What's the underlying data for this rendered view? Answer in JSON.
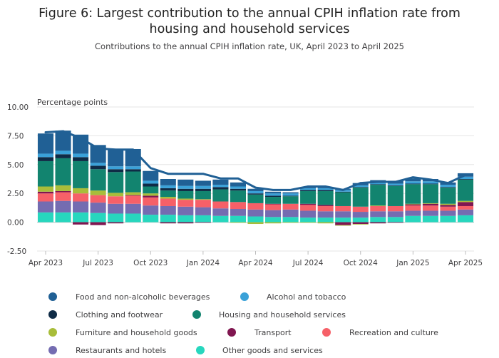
{
  "title_line1": "Figure 6: Largest contribution to the annual CPIH inflation rate from",
  "title_line2": "housing and household services",
  "subtitle": "Contributions to the annual CPIH inflation rate, UK, April 2023 to April 2025",
  "chart_data": {
    "type": "bar",
    "stacked": true,
    "title": "Figure 6: Largest contribution to the annual CPIH inflation rate from housing and household services",
    "subtitle": "Contributions to the annual CPIH inflation rate, UK, April 2023 to April 2025",
    "ylabel": "Percentage points",
    "xlabel": "",
    "ylim": [
      -2.5,
      10
    ],
    "yticks": [
      -2.5,
      0,
      2.5,
      5,
      7.5,
      10
    ],
    "ytick_labels": [
      "-2.50",
      "0.00",
      "2.50",
      "5.00",
      "7.50",
      "10.00"
    ],
    "grid": true,
    "legend_position": "bottom",
    "categories": [
      "Apr 2023",
      "May 2023",
      "Jun 2023",
      "Jul 2023",
      "Aug 2023",
      "Sep 2023",
      "Oct 2023",
      "Nov 2023",
      "Dec 2023",
      "Jan 2024",
      "Feb 2024",
      "Mar 2024",
      "Apr 2024",
      "May 2024",
      "Jun 2024",
      "Jul 2024",
      "Aug 2024",
      "Sep 2024",
      "Oct 2024",
      "Nov 2024",
      "Dec 2024",
      "Jan 2025",
      "Feb 2025",
      "Mar 2025",
      "Apr 2025"
    ],
    "x_tick_labels": [
      "Apr 2023",
      "Jul 2023",
      "Oct 2023",
      "Jan 2024",
      "Apr 2024",
      "Jul 2024",
      "Oct 2024",
      "Jan 2025",
      "Apr 2025"
    ],
    "series": [
      {
        "name": "Other goods and services",
        "color": "#27d7be",
        "values": [
          0.85,
          0.85,
          0.85,
          0.8,
          0.75,
          0.75,
          0.65,
          0.65,
          0.6,
          0.6,
          0.55,
          0.55,
          0.5,
          0.45,
          0.45,
          0.4,
          0.4,
          0.4,
          0.4,
          0.45,
          0.45,
          0.55,
          0.55,
          0.55,
          0.6
        ]
      },
      {
        "name": "Restaurants and hotels",
        "color": "#746cb1",
        "values": [
          0.95,
          1.0,
          0.95,
          0.9,
          0.85,
          0.85,
          0.8,
          0.75,
          0.75,
          0.7,
          0.65,
          0.6,
          0.6,
          0.6,
          0.65,
          0.6,
          0.55,
          0.55,
          0.5,
          0.5,
          0.5,
          0.45,
          0.45,
          0.45,
          0.5
        ]
      },
      {
        "name": "Recreation and culture",
        "color": "#f66068",
        "values": [
          0.7,
          0.75,
          0.7,
          0.65,
          0.65,
          0.7,
          0.7,
          0.65,
          0.6,
          0.65,
          0.6,
          0.6,
          0.55,
          0.5,
          0.5,
          0.5,
          0.45,
          0.45,
          0.45,
          0.45,
          0.45,
          0.45,
          0.45,
          0.35,
          0.3
        ]
      },
      {
        "name": "Transport",
        "color": "#801650",
        "values": [
          0.15,
          0.1,
          -0.2,
          -0.25,
          -0.1,
          0.05,
          0.15,
          -0.1,
          -0.1,
          -0.05,
          0.0,
          0.0,
          0.0,
          0.05,
          0.0,
          0.1,
          0.1,
          -0.25,
          -0.15,
          -0.1,
          -0.05,
          0.1,
          0.15,
          0.15,
          0.35
        ]
      },
      {
        "name": "Furniture and household goods",
        "color": "#a8bd3a",
        "values": [
          0.45,
          0.5,
          0.45,
          0.4,
          0.3,
          0.25,
          0.2,
          0.15,
          0.1,
          0.05,
          0.0,
          -0.05,
          -0.15,
          -0.1,
          -0.05,
          -0.05,
          -0.1,
          -0.05,
          -0.05,
          0.05,
          0.0,
          0.05,
          0.05,
          0.1,
          0.1
        ]
      },
      {
        "name": "Housing and household services",
        "color": "#12846f",
        "values": [
          2.2,
          2.35,
          2.35,
          1.85,
          1.8,
          1.8,
          0.6,
          0.55,
          0.65,
          0.7,
          1.05,
          1.0,
          0.75,
          0.6,
          0.65,
          1.1,
          1.2,
          1.2,
          1.65,
          1.8,
          1.75,
          1.7,
          1.65,
          1.4,
          1.85
        ]
      },
      {
        "name": "Clothing and footwear",
        "color": "#0f2b46",
        "values": [
          0.35,
          0.35,
          0.35,
          0.3,
          0.25,
          0.2,
          0.25,
          0.2,
          0.2,
          0.2,
          0.2,
          0.15,
          0.1,
          0.1,
          0.05,
          0.1,
          0.1,
          0.05,
          0.05,
          0.05,
          0.05,
          0.05,
          0.05,
          0.05,
          0.05
        ]
      },
      {
        "name": "Alcohol and tobacco",
        "color": "#3aa1d8",
        "values": [
          0.3,
          0.3,
          0.3,
          0.25,
          0.25,
          0.25,
          0.25,
          0.25,
          0.25,
          0.25,
          0.2,
          0.2,
          0.2,
          0.2,
          0.2,
          0.15,
          0.15,
          0.15,
          0.15,
          0.15,
          0.15,
          0.2,
          0.2,
          0.2,
          0.2
        ]
      },
      {
        "name": "Food and non-alcoholic beverages",
        "color": "#206095",
        "values": [
          1.75,
          1.75,
          1.65,
          1.55,
          1.5,
          1.5,
          0.85,
          0.55,
          0.55,
          0.45,
          0.45,
          0.35,
          0.2,
          0.15,
          0.1,
          0.1,
          0.1,
          0.1,
          0.2,
          0.2,
          0.25,
          0.25,
          0.2,
          0.2,
          0.3
        ]
      }
    ],
    "line": {
      "name": "CPIH",
      "color": "#206095",
      "values": [
        7.8,
        7.9,
        7.3,
        6.4,
        6.3,
        6.3,
        4.7,
        4.2,
        4.2,
        4.2,
        3.8,
        3.8,
        3.0,
        2.8,
        2.8,
        3.1,
        3.1,
        2.8,
        3.4,
        3.5,
        3.5,
        3.9,
        3.7,
        3.4,
        4.1
      ]
    },
    "legend": [
      {
        "name": "Food and non-alcoholic beverages",
        "color": "#206095"
      },
      {
        "name": "Alcohol and tobacco",
        "color": "#3aa1d8"
      },
      {
        "name": "Clothing and footwear",
        "color": "#0f2b46"
      },
      {
        "name": "Housing and household services",
        "color": "#12846f"
      },
      {
        "name": "Furniture and household goods",
        "color": "#a8bd3a"
      },
      {
        "name": "Transport",
        "color": "#801650"
      },
      {
        "name": "Recreation and culture",
        "color": "#f66068"
      },
      {
        "name": "Restaurants and hotels",
        "color": "#746cb1"
      },
      {
        "name": "Other goods and services",
        "color": "#27d7be"
      }
    ]
  }
}
